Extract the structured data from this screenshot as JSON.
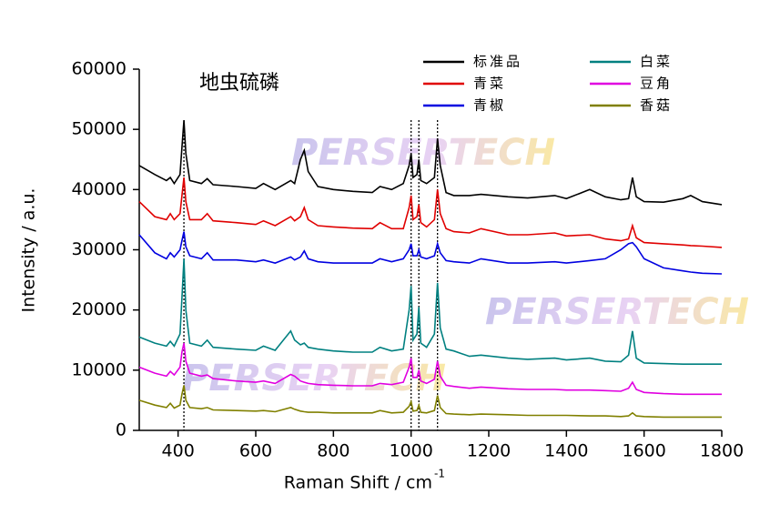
{
  "chart_data": {
    "type": "line",
    "ylabel": "Intensity / a.u.",
    "xlabel": "Raman Shift / cm",
    "xlabel_sup": "-1",
    "annotation": "地虫硫磷",
    "watermark": "PERSERTECH",
    "xlim": [
      300,
      1800
    ],
    "xticks": [
      400,
      600,
      800,
      1000,
      1200,
      1400,
      1600,
      1800
    ],
    "ylim": [
      0,
      60000
    ],
    "yticks": [
      0,
      10000,
      20000,
      30000,
      40000,
      50000,
      60000
    ],
    "reference_lines": [
      415,
      1000,
      1020,
      1068
    ],
    "x": [
      300,
      340,
      370,
      380,
      390,
      405,
      410,
      415,
      420,
      430,
      460,
      475,
      490,
      550,
      600,
      620,
      650,
      690,
      700,
      715,
      725,
      735,
      760,
      800,
      850,
      900,
      920,
      950,
      980,
      995,
      1000,
      1005,
      1015,
      1020,
      1025,
      1040,
      1060,
      1068,
      1075,
      1090,
      1110,
      1150,
      1180,
      1250,
      1300,
      1370,
      1400,
      1460,
      1500,
      1540,
      1560,
      1570,
      1580,
      1600,
      1650,
      1700,
      1720,
      1750,
      1800
    ],
    "series": [
      {
        "name": "标准品",
        "color": "#000000",
        "values": [
          44000,
          42500,
          41500,
          42000,
          41000,
          42500,
          47000,
          51500,
          46000,
          41500,
          41000,
          41800,
          40800,
          40500,
          40200,
          41000,
          40000,
          41500,
          41000,
          45000,
          46500,
          43000,
          40500,
          40000,
          39700,
          39500,
          40500,
          40000,
          41000,
          44000,
          46000,
          42000,
          42500,
          45000,
          41500,
          41000,
          42000,
          48500,
          44000,
          39500,
          39000,
          39000,
          39200,
          38800,
          38600,
          39000,
          38500,
          40000,
          38800,
          38300,
          38500,
          42000,
          38800,
          38000,
          37900,
          38500,
          39000,
          38000,
          37500
        ]
      },
      {
        "name": "青菜",
        "color": "#e00000",
        "values": [
          38000,
          35500,
          35000,
          36000,
          35000,
          36000,
          39000,
          42000,
          38000,
          35000,
          35000,
          36000,
          34800,
          34500,
          34200,
          34800,
          34000,
          35500,
          34800,
          35500,
          37000,
          35000,
          34000,
          33800,
          33600,
          33500,
          34500,
          33500,
          33500,
          37000,
          39000,
          35000,
          35500,
          37500,
          34500,
          33800,
          35000,
          40000,
          36000,
          33500,
          33000,
          32800,
          33500,
          32500,
          32500,
          32800,
          32300,
          32500,
          31800,
          31500,
          31800,
          34000,
          32000,
          31200,
          31000,
          30800,
          30700,
          30600,
          30400
        ]
      },
      {
        "name": "青椒",
        "color": "#0000e0",
        "values": [
          32500,
          29500,
          28500,
          29500,
          28800,
          30000,
          31500,
          33000,
          30500,
          29000,
          28500,
          29500,
          28300,
          28300,
          28000,
          28300,
          27800,
          28800,
          28300,
          28800,
          29800,
          28500,
          28000,
          27800,
          27800,
          27800,
          28500,
          28000,
          28500,
          30000,
          31000,
          29000,
          29000,
          30000,
          28800,
          28500,
          29000,
          31000,
          29500,
          28200,
          28000,
          27800,
          28500,
          27800,
          27800,
          28000,
          27800,
          28200,
          28500,
          30000,
          31000,
          31200,
          30500,
          28500,
          27000,
          26500,
          26300,
          26100,
          26000
        ]
      },
      {
        "name": "白菜",
        "color": "#008080",
        "values": [
          15500,
          14500,
          14000,
          14800,
          14000,
          16000,
          22000,
          28500,
          20000,
          14500,
          14000,
          15000,
          13800,
          13500,
          13300,
          14000,
          13300,
          16500,
          15000,
          14200,
          14500,
          13800,
          13500,
          13200,
          13000,
          13000,
          13800,
          13200,
          13500,
          20000,
          24000,
          15000,
          16000,
          20500,
          14500,
          13800,
          16000,
          24500,
          17000,
          13500,
          13200,
          12300,
          12500,
          12000,
          11800,
          12000,
          11700,
          12000,
          11500,
          11400,
          12500,
          16500,
          12000,
          11200,
          11100,
          11000,
          11000,
          11000,
          11000
        ]
      },
      {
        "name": "豆角",
        "color": "#e000e0",
        "values": [
          10500,
          9500,
          9000,
          9800,
          9200,
          10500,
          13000,
          14500,
          11500,
          9500,
          9000,
          9200,
          8600,
          8200,
          8000,
          8200,
          7800,
          9300,
          9000,
          8200,
          8000,
          7800,
          7600,
          7500,
          7400,
          7400,
          7800,
          7600,
          8000,
          10500,
          12000,
          8800,
          8800,
          10000,
          8200,
          7800,
          8500,
          11500,
          9000,
          7500,
          7300,
          7000,
          7200,
          6900,
          6800,
          6800,
          6700,
          6700,
          6600,
          6500,
          7000,
          8000,
          6800,
          6300,
          6100,
          6000,
          6000,
          6000,
          6000
        ]
      },
      {
        "name": "香菇",
        "color": "#808000",
        "values": [
          5000,
          4200,
          3800,
          4500,
          3700,
          4200,
          6000,
          7500,
          5000,
          3800,
          3600,
          3800,
          3400,
          3300,
          3200,
          3300,
          3100,
          3800,
          3500,
          3200,
          3100,
          3000,
          3000,
          2900,
          2900,
          2900,
          3300,
          2900,
          3000,
          4000,
          4800,
          3200,
          3300,
          4200,
          3000,
          2900,
          3300,
          5800,
          3800,
          2800,
          2700,
          2600,
          2700,
          2600,
          2500,
          2500,
          2500,
          2400,
          2400,
          2300,
          2400,
          2900,
          2400,
          2300,
          2200,
          2200,
          2200,
          2200,
          2200
        ]
      }
    ]
  }
}
